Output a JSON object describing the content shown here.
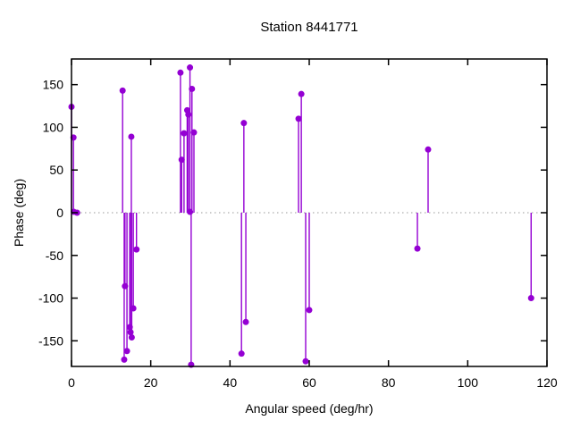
{
  "chart_data": {
    "type": "scatter",
    "subtype": "stem-impulses",
    "title": "Station 8441771",
    "xlabel": "Angular speed (deg/hr)",
    "ylabel": "Phase (deg)",
    "xlim": [
      0,
      120
    ],
    "ylim": [
      -180,
      180
    ],
    "xticks": [
      0,
      20,
      40,
      60,
      80,
      100,
      120
    ],
    "yticks": [
      -150,
      -100,
      -50,
      0,
      50,
      100,
      150
    ],
    "grid": false,
    "zero_line": true,
    "legend": "none",
    "colors": {
      "marker": "#9400d3",
      "stem": "#9400d3",
      "axis": "#000000",
      "zero_line": "#9a9a9a",
      "background": "#ffffff"
    },
    "points": [
      [
        0.0,
        124
      ],
      [
        0.5,
        88
      ],
      [
        0.6,
        1
      ],
      [
        1.4,
        0
      ],
      [
        12.9,
        143
      ],
      [
        15.1,
        89
      ],
      [
        16.4,
        -43
      ],
      [
        13.5,
        -86
      ],
      [
        15.6,
        -112
      ],
      [
        14.7,
        -134
      ],
      [
        14.9,
        -140
      ],
      [
        15.2,
        -146
      ],
      [
        14.0,
        -162
      ],
      [
        13.3,
        -172
      ],
      [
        27.5,
        164
      ],
      [
        29.9,
        170
      ],
      [
        30.4,
        145
      ],
      [
        29.2,
        120
      ],
      [
        29.5,
        115
      ],
      [
        28.4,
        93
      ],
      [
        30.9,
        94
      ],
      [
        27.8,
        62
      ],
      [
        29.9,
        1
      ],
      [
        30.2,
        -178
      ],
      [
        43.5,
        105
      ],
      [
        44.0,
        -128
      ],
      [
        42.9,
        -165
      ],
      [
        57.3,
        110
      ],
      [
        58.0,
        139
      ],
      [
        59.1,
        -174
      ],
      [
        60.0,
        -114
      ],
      [
        87.3,
        -42
      ],
      [
        90.0,
        74
      ],
      [
        116.0,
        -100
      ]
    ]
  }
}
